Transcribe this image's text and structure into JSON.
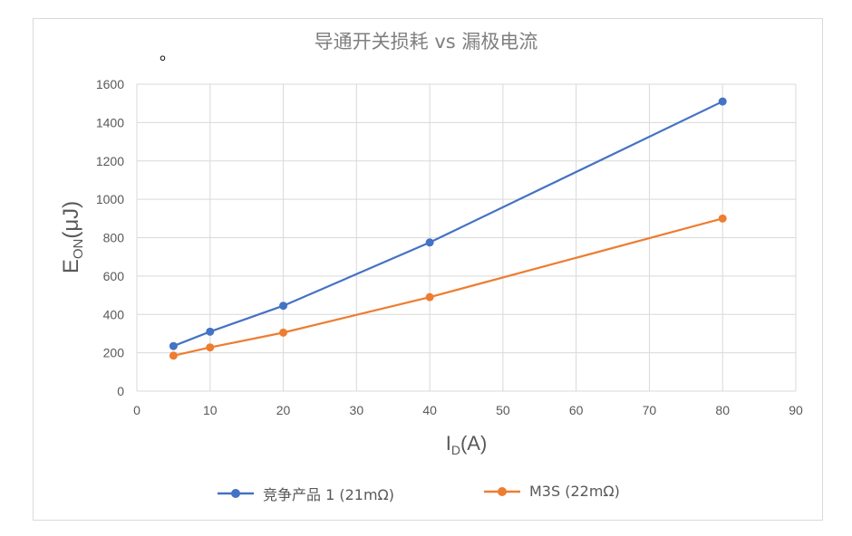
{
  "chart_data": {
    "type": "line",
    "title": "导通开关损耗 vs 漏极电流",
    "annotation": "。",
    "xlabel": "I",
    "xlabel_sub": "D",
    "xlabel_unit": "(A)",
    "ylabel": "E",
    "ylabel_sub": "ON",
    "ylabel_unit": "(μJ)",
    "xlim": [
      0,
      90
    ],
    "ylim": [
      0,
      1600
    ],
    "xticks": [
      0,
      10,
      20,
      30,
      40,
      50,
      60,
      70,
      80,
      90
    ],
    "yticks": [
      0,
      200,
      400,
      600,
      800,
      1000,
      1200,
      1400,
      1600
    ],
    "grid": true,
    "legend_position": "bottom",
    "series": [
      {
        "name": "竞争产品 1 (21mΩ)",
        "color": "#4472c4",
        "x": [
          5,
          10,
          20,
          40,
          80
        ],
        "y": [
          235,
          310,
          445,
          775,
          1510
        ]
      },
      {
        "name": "M3S (22mΩ)",
        "color": "#ed7d31",
        "x": [
          5,
          10,
          20,
          40,
          80
        ],
        "y": [
          185,
          228,
          305,
          490,
          900
        ]
      }
    ]
  }
}
